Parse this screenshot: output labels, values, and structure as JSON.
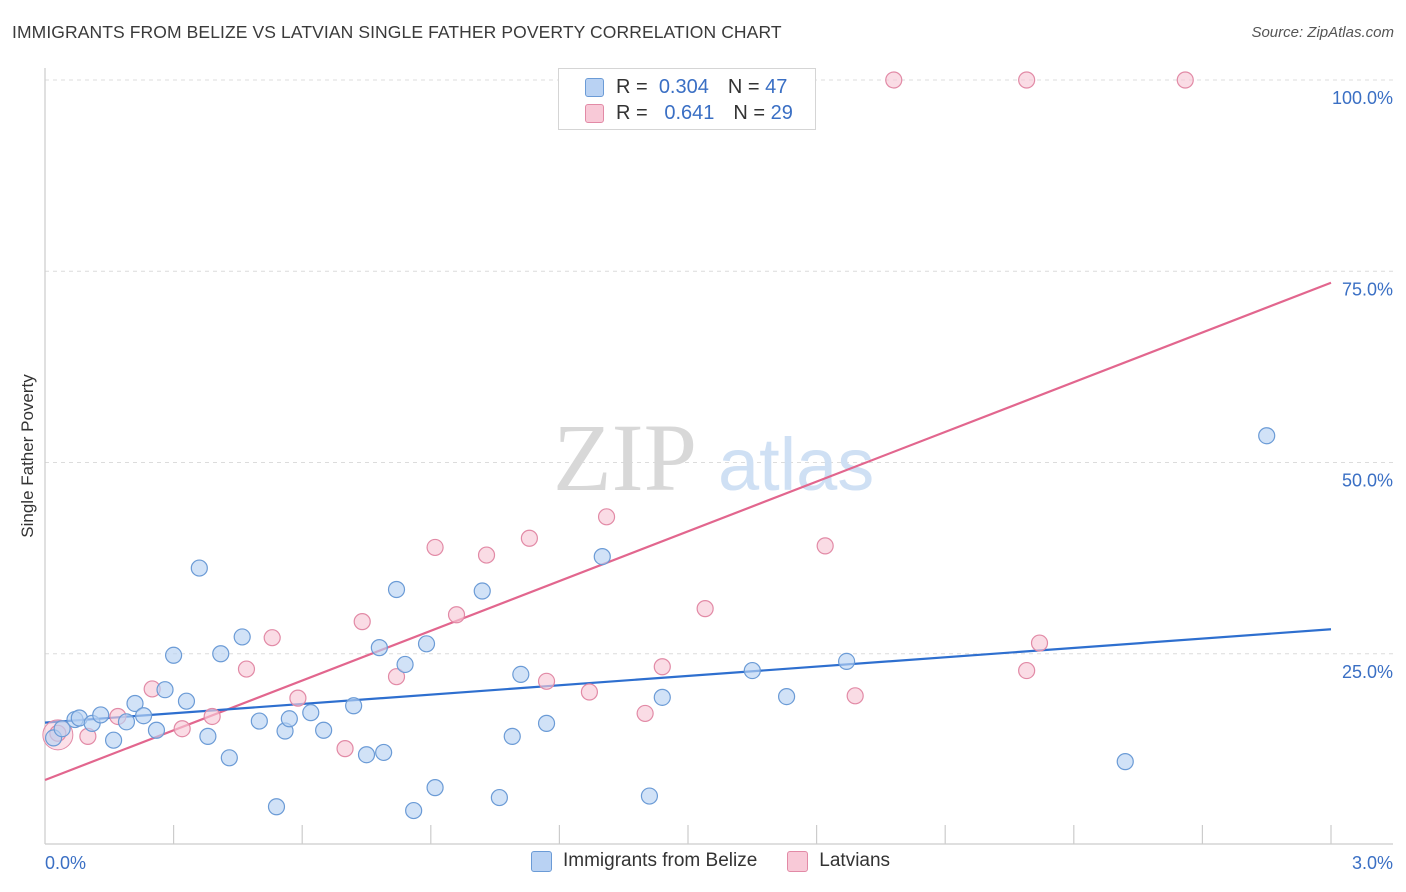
{
  "title": "IMMIGRANTS FROM BELIZE VS LATVIAN SINGLE FATHER POVERTY CORRELATION CHART",
  "source": "Source: ZipAtlas.com",
  "watermark": {
    "zip": "ZIP",
    "atlas": "atlas"
  },
  "legend_stats": [
    {
      "r_label": "R =",
      "r_value": "0.304",
      "n_label": "N =",
      "n_value": "47"
    },
    {
      "r_label": "R =",
      "r_value": "0.641",
      "n_label": "N =",
      "n_value": "29"
    }
  ],
  "chart_data": {
    "type": "scatter",
    "title": "IMMIGRANTS FROM BELIZE VS LATVIAN SINGLE FATHER POVERTY CORRELATION CHART",
    "xlabel": "",
    "ylabel": "Single Father Poverty",
    "xlim": [
      0,
      3.0
    ],
    "ylim": [
      0,
      100
    ],
    "x_tick_labels": [
      "0.0%",
      "3.0%"
    ],
    "y_tick_labels": [
      "100.0%",
      "75.0%",
      "50.0%",
      "25.0%"
    ],
    "y_ticks": [
      100,
      75,
      50,
      25
    ],
    "grid": true,
    "legend_position": "bottom-center",
    "colors": {
      "blue_fill": "#b9d2f3",
      "blue_stroke": "#6b9bd6",
      "blue_line": "#2e6fcf",
      "pink_fill": "#f8c9d7",
      "pink_stroke": "#e28aa6",
      "pink_line": "#e2668e",
      "tick_text": "#3a6fc4"
    },
    "series": [
      {
        "name": "Immigrants from Belize",
        "trend": {
          "x": [
            0.0,
            3.0
          ],
          "y": [
            16.0,
            28.2
          ]
        },
        "points": [
          [
            0.02,
            14.0
          ],
          [
            0.04,
            15.2
          ],
          [
            0.07,
            16.4
          ],
          [
            0.08,
            16.6
          ],
          [
            0.11,
            15.9
          ],
          [
            0.13,
            17.0
          ],
          [
            0.16,
            13.7
          ],
          [
            0.19,
            16.1
          ],
          [
            0.21,
            18.5
          ],
          [
            0.23,
            16.9
          ],
          [
            0.26,
            15.0
          ],
          [
            0.28,
            20.3
          ],
          [
            0.3,
            24.8
          ],
          [
            0.33,
            18.8
          ],
          [
            0.36,
            36.2
          ],
          [
            0.38,
            14.2
          ],
          [
            0.41,
            25.0
          ],
          [
            0.43,
            11.4
          ],
          [
            0.46,
            27.2
          ],
          [
            0.5,
            16.2
          ],
          [
            0.54,
            5.0
          ],
          [
            0.56,
            14.9
          ],
          [
            0.57,
            16.5
          ],
          [
            0.62,
            17.3
          ],
          [
            0.65,
            15.0
          ],
          [
            0.72,
            18.2
          ],
          [
            0.75,
            11.8
          ],
          [
            0.78,
            25.8
          ],
          [
            0.79,
            12.1
          ],
          [
            0.82,
            33.4
          ],
          [
            0.84,
            23.6
          ],
          [
            0.86,
            4.5
          ],
          [
            0.89,
            26.3
          ],
          [
            0.91,
            7.5
          ],
          [
            1.02,
            33.2
          ],
          [
            1.06,
            6.2
          ],
          [
            1.09,
            14.2
          ],
          [
            1.11,
            22.3
          ],
          [
            1.17,
            15.9
          ],
          [
            1.3,
            37.7
          ],
          [
            1.41,
            6.4
          ],
          [
            1.44,
            19.3
          ],
          [
            1.65,
            22.8
          ],
          [
            1.73,
            19.4
          ],
          [
            1.87,
            24.0
          ],
          [
            2.52,
            10.9
          ],
          [
            2.85,
            53.5
          ]
        ]
      },
      {
        "name": "Latvians",
        "trend": {
          "x": [
            0.0,
            3.0
          ],
          "y": [
            8.5,
            73.5
          ]
        },
        "points": [
          [
            0.03,
            14.6
          ],
          [
            0.1,
            14.2
          ],
          [
            0.17,
            16.8
          ],
          [
            0.25,
            20.4
          ],
          [
            0.32,
            15.2
          ],
          [
            0.39,
            16.8
          ],
          [
            0.47,
            23.0
          ],
          [
            0.53,
            27.1
          ],
          [
            0.59,
            19.2
          ],
          [
            0.7,
            12.6
          ],
          [
            0.74,
            29.2
          ],
          [
            0.82,
            22.0
          ],
          [
            0.91,
            38.9
          ],
          [
            0.96,
            30.1
          ],
          [
            1.03,
            37.9
          ],
          [
            1.13,
            40.1
          ],
          [
            1.17,
            21.4
          ],
          [
            1.27,
            20.0
          ],
          [
            1.31,
            42.9
          ],
          [
            1.4,
            17.2
          ],
          [
            1.44,
            23.3
          ],
          [
            1.54,
            30.9
          ],
          [
            1.82,
            39.1
          ],
          [
            1.89,
            19.5
          ],
          [
            1.98,
            100.0
          ],
          [
            2.29,
            100.0
          ],
          [
            2.29,
            22.8
          ],
          [
            2.32,
            26.4
          ],
          [
            2.66,
            100.0
          ]
        ]
      }
    ]
  },
  "legend_bottom": [
    {
      "label": "Immigrants from Belize"
    },
    {
      "label": "Latvians"
    }
  ]
}
